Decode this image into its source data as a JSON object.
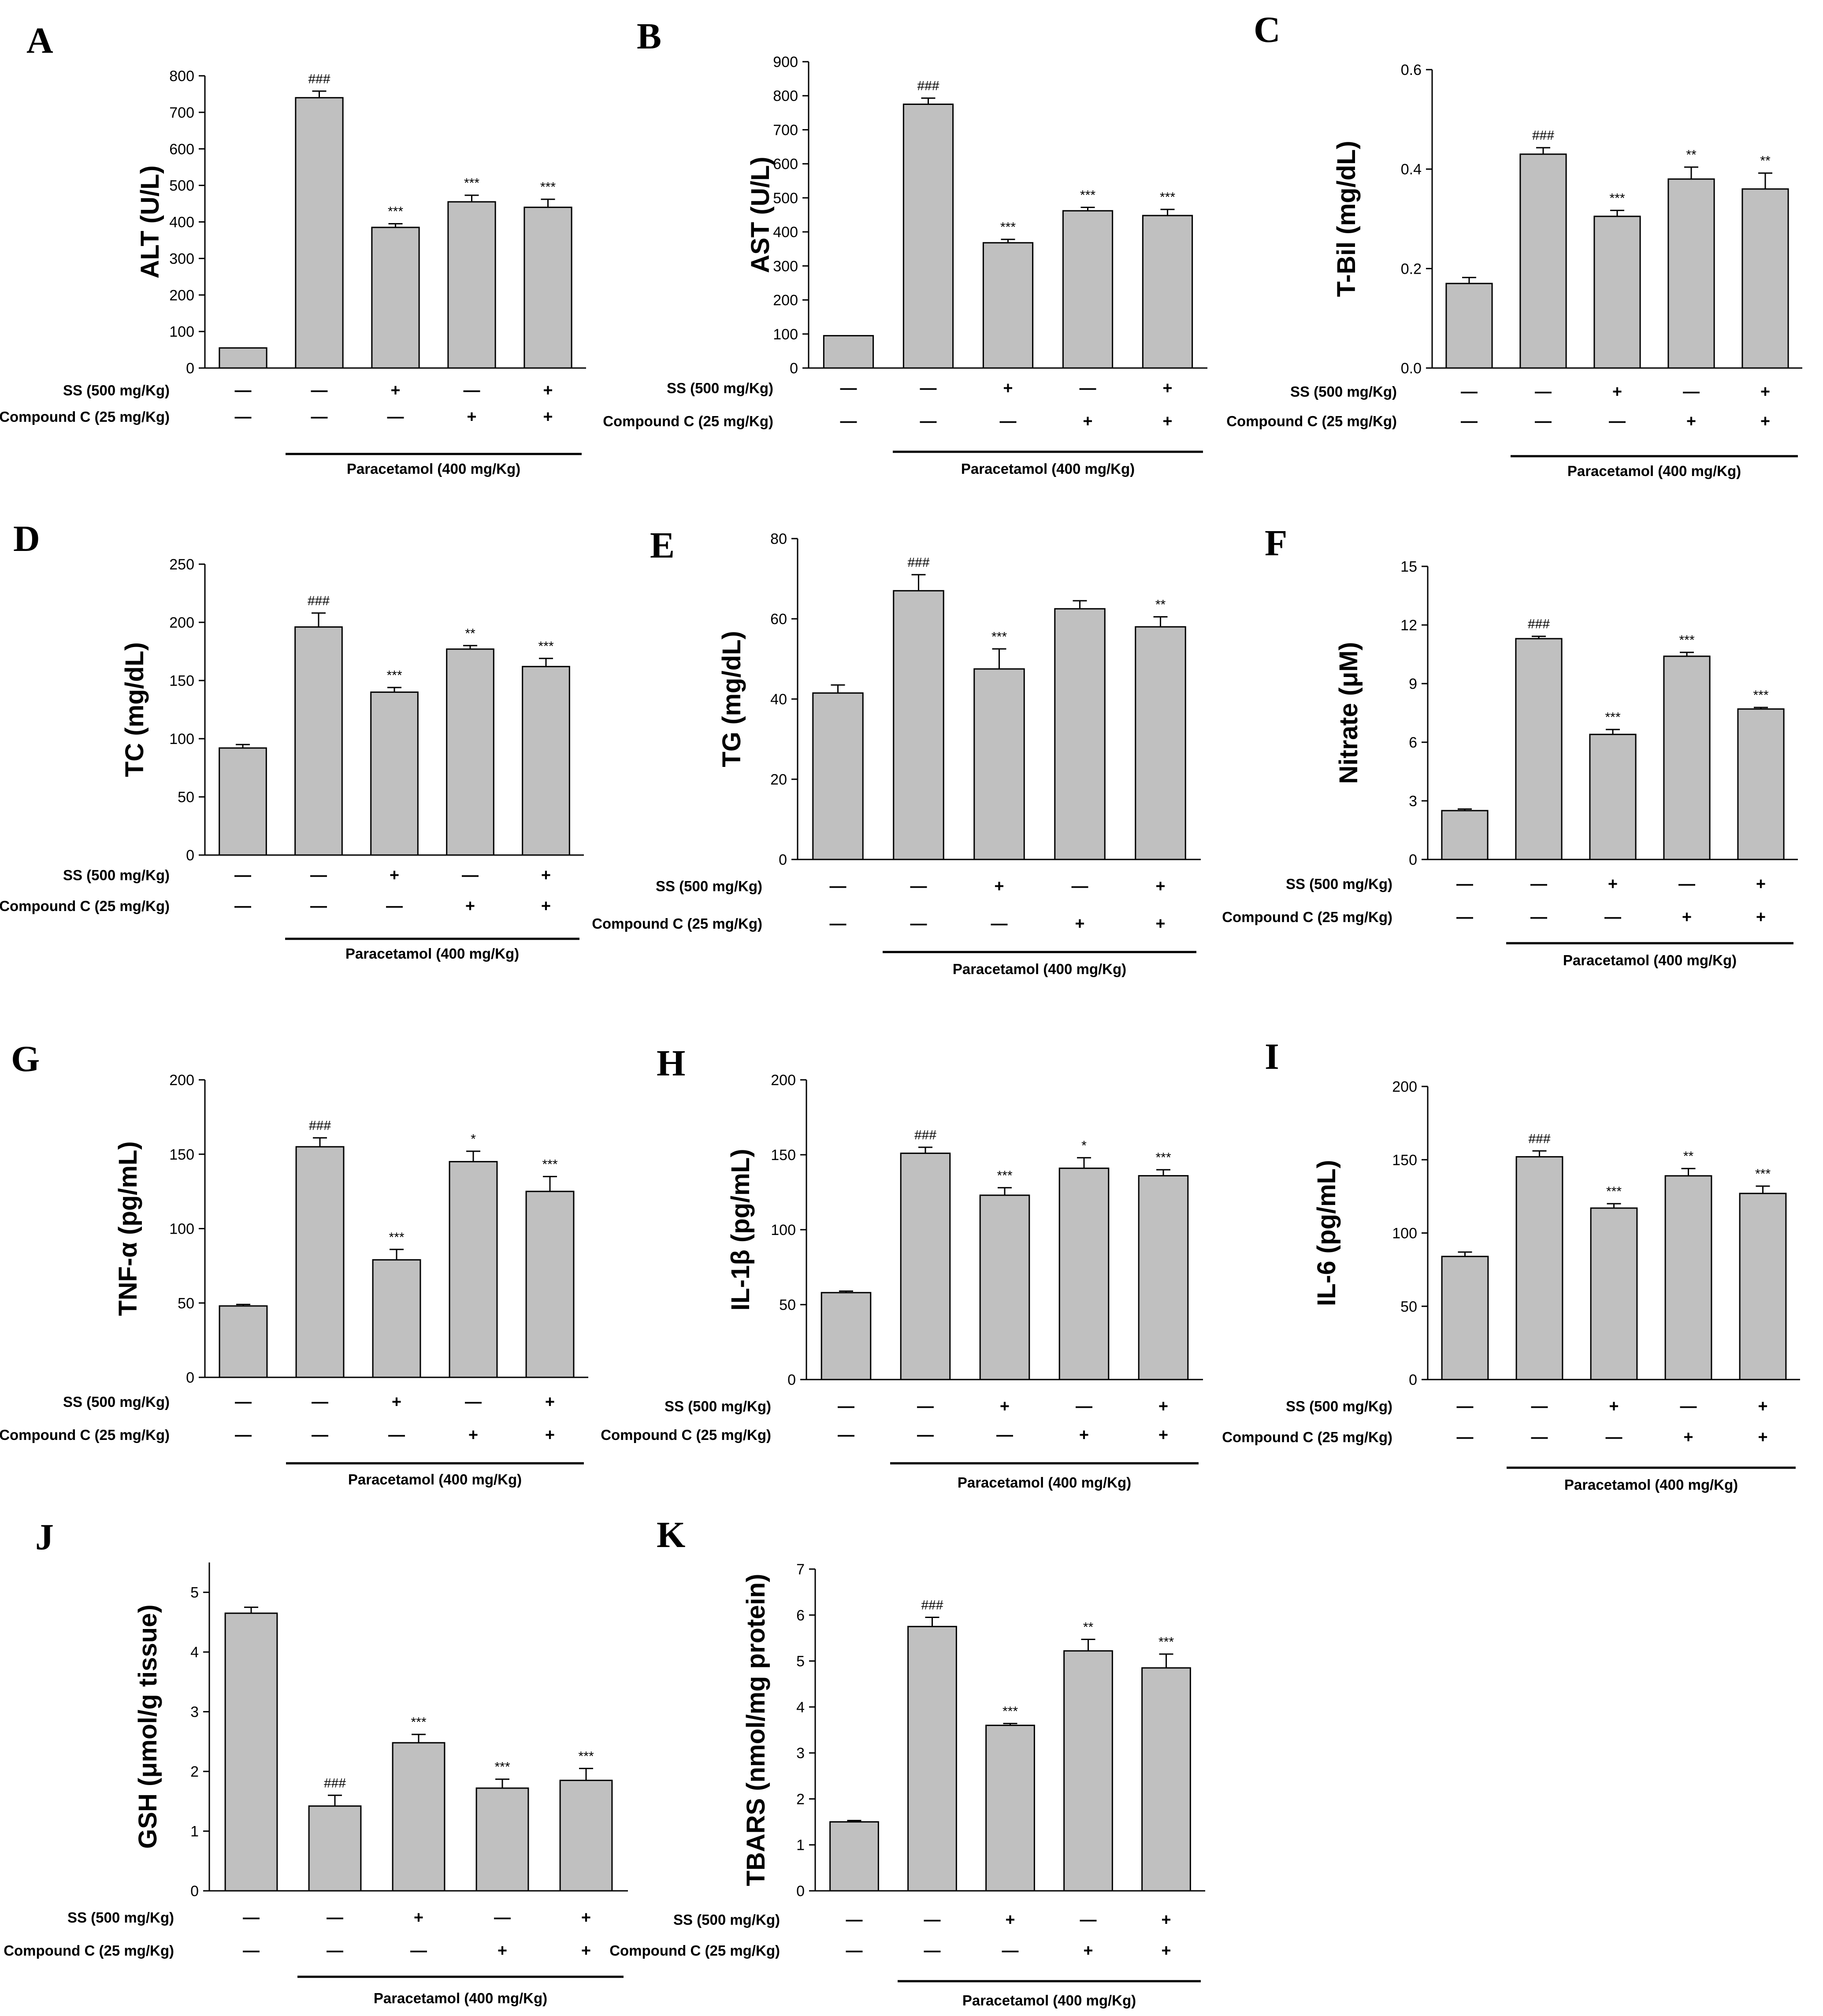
{
  "figure": {
    "treatment_labels": {
      "ss": "SS (500 mg/Kg)",
      "compound_c": "Compound C (25 mg/Kg)",
      "paracetamol": "Paracetamol (400 mg/Kg)"
    },
    "ss_signs": [
      "—",
      "—",
      "+",
      "—",
      "+"
    ],
    "compound_c_signs": [
      "—",
      "—",
      "—",
      "+",
      "+"
    ]
  },
  "chart_data": [
    {
      "panel": "A",
      "type": "bar",
      "ylabel": "ALT (U/L)",
      "ylim": [
        0,
        800
      ],
      "yticks": [
        0,
        100,
        200,
        300,
        400,
        500,
        600,
        700,
        800
      ],
      "values": [
        55,
        740,
        385,
        455,
        440
      ],
      "errors": [
        0,
        18,
        10,
        18,
        22
      ],
      "annotations": [
        "",
        "###",
        "***",
        "***",
        "***"
      ]
    },
    {
      "panel": "B",
      "type": "bar",
      "ylabel": "AST (U/L)",
      "ylim": [
        0,
        900
      ],
      "yticks": [
        0,
        100,
        200,
        300,
        400,
        500,
        600,
        700,
        800,
        900
      ],
      "values": [
        95,
        775,
        368,
        462,
        448
      ],
      "errors": [
        0,
        18,
        10,
        10,
        18
      ],
      "annotations": [
        "",
        "###",
        "***",
        "***",
        "***"
      ]
    },
    {
      "panel": "C",
      "type": "bar",
      "ylabel": "T-Bil (mg/dL)",
      "ylim": [
        0,
        0.6
      ],
      "yticks": [
        0.0,
        0.2,
        0.4,
        0.6
      ],
      "values": [
        0.17,
        0.43,
        0.305,
        0.38,
        0.36
      ],
      "errors": [
        0.012,
        0.013,
        0.012,
        0.024,
        0.032
      ],
      "annotations": [
        "",
        "###",
        "***",
        "**",
        "**"
      ]
    },
    {
      "panel": "D",
      "type": "bar",
      "ylabel": "TC (mg/dL)",
      "ylim": [
        0,
        250
      ],
      "yticks": [
        0,
        50,
        100,
        150,
        200,
        250
      ],
      "values": [
        92,
        196,
        140,
        177,
        162
      ],
      "errors": [
        3,
        12,
        4,
        3,
        7
      ],
      "annotations": [
        "",
        "###",
        "***",
        "**",
        "***"
      ]
    },
    {
      "panel": "E",
      "type": "bar",
      "ylabel": "TG (mg/dL)",
      "ylim": [
        0,
        80
      ],
      "yticks": [
        0,
        20,
        40,
        60,
        80
      ],
      "values": [
        41.5,
        67,
        47.5,
        62.5,
        58
      ],
      "errors": [
        2,
        4,
        5,
        2,
        2.5
      ],
      "annotations": [
        "",
        "###",
        "***",
        "",
        "**"
      ]
    },
    {
      "panel": "F",
      "type": "bar",
      "ylabel": "Nitrate (μM)",
      "ylim": [
        0,
        15
      ],
      "yticks": [
        0,
        3,
        6,
        9,
        12,
        15
      ],
      "values": [
        2.5,
        11.3,
        6.4,
        10.4,
        7.7
      ],
      "errors": [
        0.08,
        0.12,
        0.25,
        0.2,
        0.08
      ],
      "annotations": [
        "",
        "###",
        "***",
        "***",
        "***"
      ]
    },
    {
      "panel": "G",
      "type": "bar",
      "ylabel": "TNF-α (pg/mL)",
      "ylim": [
        0,
        200
      ],
      "yticks": [
        0,
        50,
        100,
        150,
        200
      ],
      "values": [
        48,
        155,
        79,
        145,
        125
      ],
      "errors": [
        1,
        6,
        7,
        7,
        10
      ],
      "annotations": [
        "",
        "###",
        "***",
        "*",
        "***"
      ]
    },
    {
      "panel": "H",
      "type": "bar",
      "ylabel": "IL-1β (pg/mL)",
      "ylim": [
        0,
        200
      ],
      "yticks": [
        0,
        50,
        100,
        150,
        200
      ],
      "values": [
        58,
        151,
        123,
        141,
        136
      ],
      "errors": [
        1,
        4,
        5,
        7,
        4
      ],
      "annotations": [
        "",
        "###",
        "***",
        "*",
        "***"
      ]
    },
    {
      "panel": "I",
      "type": "bar",
      "ylabel": "IL-6 (pg/mL)",
      "ylim": [
        0,
        200
      ],
      "yticks": [
        0,
        50,
        100,
        150,
        200
      ],
      "values": [
        84,
        152,
        117,
        139,
        127
      ],
      "errors": [
        3,
        4,
        3,
        5,
        5
      ],
      "annotations": [
        "",
        "###",
        "***",
        "**",
        "***"
      ]
    },
    {
      "panel": "J",
      "type": "bar",
      "ylabel": "GSH (μmol/g tissue)",
      "ylim": [
        0,
        5.5
      ],
      "yticks": [
        0,
        1,
        2,
        3,
        4,
        5
      ],
      "values": [
        4.65,
        1.42,
        2.48,
        1.72,
        1.85
      ],
      "errors": [
        0.1,
        0.18,
        0.14,
        0.15,
        0.2
      ],
      "annotations": [
        "",
        "###",
        "***",
        "***",
        "***"
      ]
    },
    {
      "panel": "K",
      "type": "bar",
      "ylabel": "TBARS (nmol/mg protein)",
      "ylim": [
        0,
        7
      ],
      "yticks": [
        0,
        1,
        2,
        3,
        4,
        5,
        6,
        7
      ],
      "values": [
        1.5,
        5.75,
        3.6,
        5.22,
        4.85
      ],
      "errors": [
        0.03,
        0.2,
        0.04,
        0.25,
        0.3
      ],
      "annotations": [
        "",
        "###",
        "***",
        "**",
        "***"
      ]
    }
  ]
}
